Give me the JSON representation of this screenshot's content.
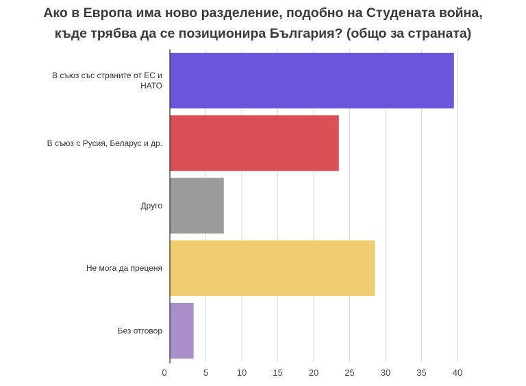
{
  "chart_data": {
    "type": "bar",
    "orientation": "horizontal",
    "title_lines": [
      "Ако в Европа има ново разделение, подобно на Студената война,",
      "къде трябва да се позиционира България? (общо за страната)"
    ],
    "categories": [
      [
        "В съюз със страните от ЕС и",
        "НАТО"
      ],
      [
        "В съюз с Русия, Беларус и др."
      ],
      [
        "Друго"
      ],
      [
        "Не мога да преценя"
      ],
      [
        "Без отговор"
      ]
    ],
    "values": [
      39.5,
      23.5,
      7.5,
      28.5,
      3.3
    ],
    "colors": [
      "#6b55db",
      "#d95156",
      "#9b9b9b",
      "#efcd6e",
      "#a98fca"
    ],
    "xlim": [
      0,
      40
    ],
    "xticks": [
      "0",
      "5",
      "10",
      "15",
      "20",
      "25",
      "30",
      "35",
      "40"
    ],
    "grid": true,
    "legend": "none"
  }
}
